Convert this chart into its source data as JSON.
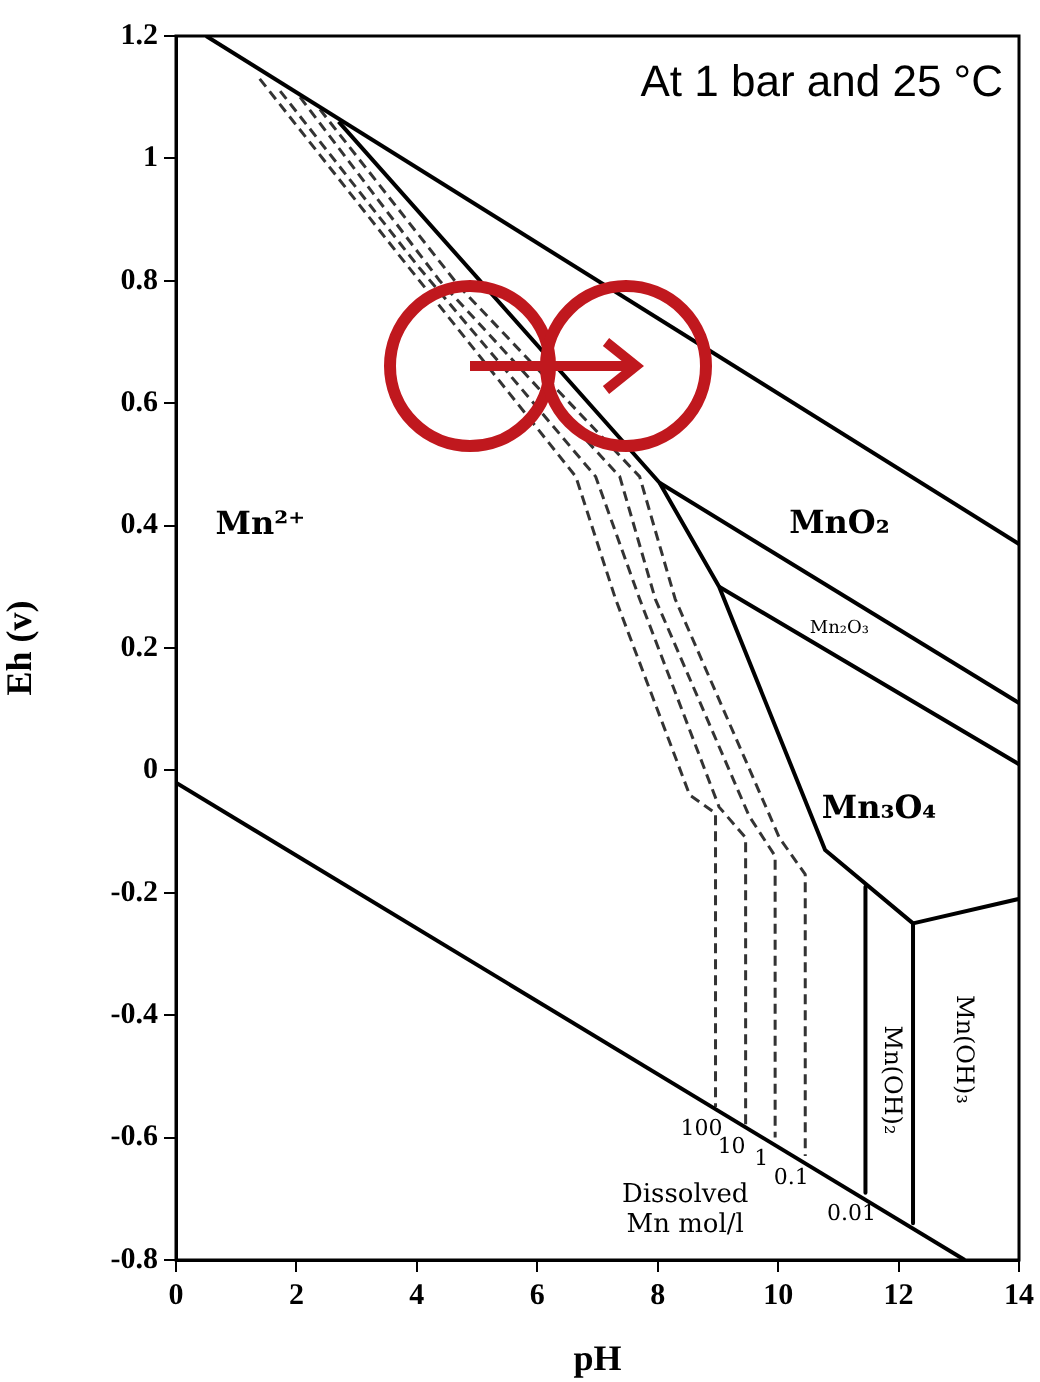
{
  "chart_data": {
    "type": "line",
    "title": "At 1 bar and 25 °C",
    "xlabel": "pH",
    "ylabel": "Eh (v)",
    "xlim": [
      0,
      14
    ],
    "xticks": [
      0,
      2,
      4,
      6,
      8,
      10,
      12,
      14
    ],
    "ylim": [
      -0.8,
      1.2
    ],
    "yticks": [
      -0.8,
      -0.6,
      -0.4,
      -0.2,
      0,
      0.2,
      0.4,
      0.6,
      0.8,
      1,
      1.2
    ],
    "grid": false,
    "legend": false,
    "marker": "none",
    "series": [
      {
        "color": "#000000",
        "line_style": "solid",
        "x": [
          0.5,
          14
        ],
        "values": [
          1.2,
          0.37
        ]
      },
      {
        "color": "#000000",
        "line_style": "solid",
        "x": [
          0,
          13.1
        ],
        "values": [
          -0.02,
          -0.8
        ]
      },
      {
        "color": "#000000",
        "line_style": "solid",
        "x": [
          2.7,
          8.03,
          9.02,
          10.78,
          12.24,
          14
        ],
        "values": [
          1.06,
          0.47,
          0.3,
          -0.13,
          -0.25,
          -0.21
        ]
      },
      {
        "color": "#000000",
        "line_style": "solid",
        "x": [
          8.03,
          14
        ],
        "values": [
          0.47,
          0.11
        ]
      },
      {
        "color": "#000000",
        "line_style": "solid",
        "x": [
          9.02,
          14
        ],
        "values": [
          0.3,
          0.01
        ]
      },
      {
        "name": "0.01",
        "color": "#000000",
        "line_style": "solid",
        "x": [
          11.45,
          11.45
        ],
        "values": [
          -0.19,
          -0.69
        ]
      },
      {
        "color": "#000000",
        "line_style": "solid",
        "x": [
          12.24,
          12.24
        ],
        "values": [
          -0.25,
          -0.74
        ]
      },
      {
        "name": "100",
        "color": "#333333",
        "line_style": "dashed",
        "x": [
          1.39,
          3.72,
          6.64,
          7.3,
          8.53,
          8.96,
          8.96
        ],
        "values": [
          1.13,
          0.84,
          0.48,
          0.28,
          -0.04,
          -0.07,
          -0.55
        ]
      },
      {
        "name": "10",
        "color": "#333333",
        "line_style": "dashed",
        "x": [
          1.73,
          4.05,
          6.97,
          7.7,
          9.02,
          9.46,
          9.46
        ],
        "values": [
          1.11,
          0.82,
          0.48,
          0.28,
          -0.06,
          -0.11,
          -0.58
        ]
      },
      {
        "name": "1",
        "color": "#333333",
        "line_style": "dashed",
        "x": [
          2.06,
          4.38,
          7.37,
          7.96,
          9.52,
          9.95,
          9.95
        ],
        "values": [
          1.1,
          0.8,
          0.48,
          0.28,
          -0.075,
          -0.14,
          -0.6
        ]
      },
      {
        "name": "0.1",
        "color": "#333333",
        "line_style": "dashed",
        "x": [
          2.39,
          4.71,
          7.7,
          8.29,
          10.02,
          10.45,
          10.45
        ],
        "values": [
          1.08,
          0.79,
          0.48,
          0.28,
          -0.11,
          -0.17,
          -0.63
        ]
      }
    ],
    "annotations": [
      "Mn²⁺",
      "MnO₂",
      "Mn₂O₃",
      "Mn₃O₄",
      "Mn(OH)₂",
      "Mn(OH)₃",
      "Dissolved\nMn mol/l"
    ]
  }
}
